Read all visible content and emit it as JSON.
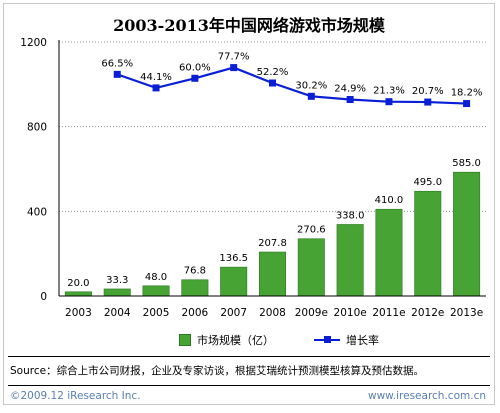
{
  "title": "2003-2013年中国网络游戏市场规模",
  "chart_data": {
    "type": "bar",
    "categories": [
      "2003",
      "2004",
      "2005",
      "2006",
      "2007",
      "2008",
      "2009e",
      "2010e",
      "2011e",
      "2012e",
      "2013e"
    ],
    "series": [
      {
        "name": "市场规模（亿）",
        "type": "bar",
        "color": "#46a334",
        "values": [
          20.0,
          33.3,
          48.0,
          76.8,
          136.5,
          207.8,
          270.6,
          338.0,
          410.0,
          495.0,
          585.0
        ],
        "labels": [
          "20.0",
          "33.3",
          "48.0",
          "76.8",
          "136.5",
          "207.8",
          "270.6",
          "338.0",
          "410.0",
          "495.0",
          "585.0"
        ]
      },
      {
        "name": "增长率",
        "type": "line",
        "color": "#0a1ed6",
        "values": [
          null,
          66.5,
          44.1,
          60.0,
          77.7,
          52.2,
          30.2,
          24.9,
          21.3,
          20.7,
          18.2
        ],
        "labels": [
          "",
          "66.5%",
          "44.1%",
          "60.0%",
          "77.7%",
          "52.2%",
          "30.2%",
          "24.9%",
          "21.3%",
          "20.7%",
          "18.2%"
        ]
      }
    ],
    "y_ticks": [
      "0",
      "400",
      "800",
      "1200"
    ],
    "ylim": [
      0,
      1200
    ],
    "rate_range": [
      -300,
      120
    ],
    "legend_position": "bottom"
  },
  "legend": {
    "bar_label": "市场规模（亿）",
    "line_label": "增长率"
  },
  "source": "Source：综合上市公司财报，企业及专家访谈，根据艾瑞统计预测模型核算及预估数据。",
  "footer": {
    "copyright": "©2009.12 iResearch Inc.",
    "website": "www.iresearch.com.cn"
  }
}
